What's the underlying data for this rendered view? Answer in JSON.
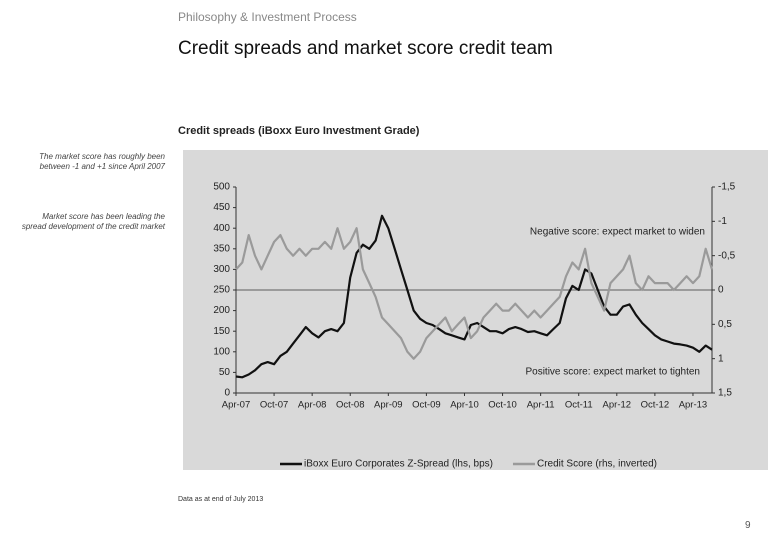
{
  "header": "Philosophy & Investment Process",
  "title": "Credit spreads and market score credit team",
  "notes": [
    "The market score has roughly been between -1 and +1 since April 2007",
    "Market score has been leading the spread development of the credit market"
  ],
  "footnote": "Data as at end of July 2013",
  "page_number": "9",
  "chart_data": {
    "type": "line",
    "title": "Credit spreads (iBoxx Euro Investment Grade)",
    "annotations": [
      "Negative score: expect market to widen",
      "Positive score: expect market to tighten"
    ],
    "categories": [
      "Apr-07",
      null,
      null,
      null,
      null,
      null,
      "Oct-07",
      null,
      null,
      null,
      null,
      null,
      "Apr-08",
      null,
      null,
      null,
      null,
      null,
      "Oct-08",
      null,
      null,
      null,
      null,
      null,
      "Apr-09",
      null,
      null,
      null,
      null,
      null,
      "Oct-09",
      null,
      null,
      null,
      null,
      null,
      "Apr-10",
      null,
      null,
      null,
      null,
      null,
      "Oct-10",
      null,
      null,
      null,
      null,
      null,
      "Apr-11",
      null,
      null,
      null,
      null,
      null,
      "Oct-11",
      null,
      null,
      null,
      null,
      null,
      "Apr-12",
      null,
      null,
      null,
      null,
      null,
      "Oct-12",
      null,
      null,
      null,
      null,
      null,
      "Apr-13",
      null,
      null,
      null
    ],
    "series": [
      {
        "name": "iBoxx Euro Corporates Z-Spread (lhs, bps)",
        "color": "#111111",
        "values": [
          40,
          38,
          45,
          55,
          70,
          75,
          70,
          90,
          100,
          120,
          140,
          160,
          145,
          135,
          150,
          155,
          150,
          170,
          280,
          340,
          360,
          350,
          370,
          430,
          400,
          350,
          300,
          250,
          200,
          180,
          170,
          165,
          155,
          145,
          140,
          135,
          130,
          165,
          170,
          160,
          150,
          150,
          145,
          155,
          160,
          155,
          148,
          150,
          145,
          140,
          155,
          170,
          230,
          260,
          250,
          300,
          290,
          250,
          210,
          190,
          190,
          210,
          215,
          190,
          170,
          155,
          140,
          130,
          125,
          120,
          118,
          115,
          110,
          100,
          115,
          105
        ]
      },
      {
        "name": "Credit Score (rhs, inverted)",
        "color": "#9a9a9a",
        "axis": "y2",
        "values": [
          -0.3,
          -0.4,
          -0.8,
          -0.5,
          -0.3,
          -0.5,
          -0.7,
          -0.8,
          -0.6,
          -0.5,
          -0.6,
          -0.5,
          -0.6,
          -0.6,
          -0.7,
          -0.6,
          -0.9,
          -0.6,
          -0.7,
          -0.9,
          -0.3,
          -0.1,
          0.1,
          0.4,
          0.5,
          0.6,
          0.7,
          0.9,
          1.0,
          0.9,
          0.7,
          0.6,
          0.5,
          0.4,
          0.6,
          0.5,
          0.4,
          0.7,
          0.6,
          0.4,
          0.3,
          0.2,
          0.3,
          0.3,
          0.2,
          0.3,
          0.4,
          0.3,
          0.4,
          0.3,
          0.2,
          0.1,
          -0.2,
          -0.4,
          -0.3,
          -0.6,
          -0.1,
          0.1,
          0.3,
          -0.1,
          -0.2,
          -0.3,
          -0.5,
          -0.1,
          0.0,
          -0.2,
          -0.1,
          -0.1,
          -0.1,
          0.0,
          -0.1,
          -0.2,
          -0.1,
          -0.2,
          -0.6,
          -0.3
        ]
      }
    ],
    "ylim": [
      0,
      500
    ],
    "yticks": [
      0,
      50,
      100,
      150,
      200,
      250,
      300,
      350,
      400,
      450,
      500
    ],
    "y2lim": [
      1.5,
      -1.5
    ],
    "y2ticks": [
      {
        "value": 1.5,
        "label": "1,5"
      },
      1,
      {
        "value": 0.5,
        "label": "0,5"
      },
      0,
      {
        "value": -0.5,
        "label": "-0,5"
      },
      -1,
      {
        "value": -1.5,
        "label": "-1,5"
      }
    ],
    "legend": "bottom"
  }
}
